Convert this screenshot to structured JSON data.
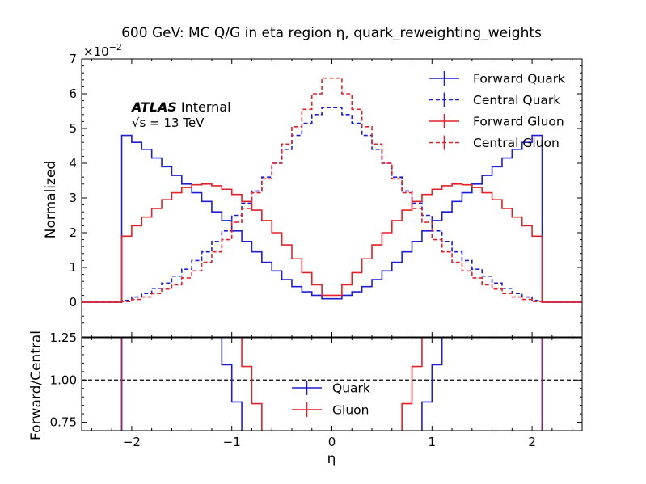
{
  "chart_data": [
    {
      "type": "line",
      "title": "600 GeV: MC Q/G in eta region η, quark_reweighting_weights",
      "xlabel": "",
      "ylabel": "Normalized",
      "y_scale_label": "×10",
      "y_scale_exponent": "−2",
      "xlim": [
        -2.5,
        2.5
      ],
      "ylim": [
        -1,
        7
      ],
      "ytick_values": [
        -1,
        0,
        1,
        2,
        3,
        4,
        5,
        6,
        7
      ],
      "ytick_labels": [
        "−1",
        "0",
        "1",
        "2",
        "3",
        "4",
        "5",
        "6",
        "7"
      ],
      "annotation": {
        "atlas": "ATLAS",
        "internal": "Internal",
        "sqrt": "√s",
        "energy": " = 13 TeV"
      },
      "legend_position": "top-right",
      "bin_edges": [
        -2.5,
        -2.1,
        -2.0,
        -1.9,
        -1.8,
        -1.7,
        -1.6,
        -1.5,
        -1.4,
        -1.3,
        -1.2,
        -1.1,
        -1.0,
        -0.9,
        -0.8,
        -0.7,
        -0.6,
        -0.5,
        -0.4,
        -0.3,
        -0.2,
        -0.1,
        0.1,
        0.2,
        0.3,
        0.4,
        0.5,
        0.6,
        0.7,
        0.8,
        0.9,
        1.0,
        1.1,
        1.2,
        1.3,
        1.4,
        1.5,
        1.6,
        1.7,
        1.8,
        1.9,
        2.0,
        2.1,
        2.5
      ],
      "series": [
        {
          "name": "Forward Quark",
          "color": "#1f1fd1",
          "style": "solid",
          "values": [
            0,
            4.8,
            4.6,
            4.4,
            4.15,
            3.9,
            3.65,
            3.4,
            3.15,
            2.9,
            2.6,
            2.35,
            2.05,
            1.75,
            1.45,
            1.15,
            0.9,
            0.65,
            0.45,
            0.3,
            0.2,
            0.1,
            0.2,
            0.3,
            0.45,
            0.65,
            0.9,
            1.15,
            1.45,
            1.75,
            2.05,
            2.35,
            2.6,
            2.9,
            3.15,
            3.4,
            3.65,
            3.9,
            4.15,
            4.4,
            4.6,
            4.8,
            0
          ]
        },
        {
          "name": "Central Quark",
          "color": "#1f1fd1",
          "style": "dashed",
          "values": [
            0,
            0.05,
            0.15,
            0.25,
            0.4,
            0.55,
            0.75,
            0.95,
            1.2,
            1.45,
            1.75,
            2.05,
            2.5,
            2.85,
            3.2,
            3.6,
            4.0,
            4.4,
            4.8,
            5.15,
            5.4,
            5.6,
            5.4,
            5.15,
            4.8,
            4.4,
            4.0,
            3.6,
            3.2,
            2.85,
            2.5,
            2.05,
            1.75,
            1.45,
            1.2,
            0.95,
            0.75,
            0.55,
            0.4,
            0.25,
            0.15,
            0.05,
            0
          ]
        },
        {
          "name": "Forward Gluon",
          "color": "#e0232b",
          "style": "solid",
          "values": [
            0,
            1.9,
            2.2,
            2.45,
            2.7,
            2.95,
            3.15,
            3.3,
            3.38,
            3.4,
            3.35,
            3.25,
            3.1,
            2.9,
            2.65,
            2.35,
            2.0,
            1.65,
            1.25,
            0.85,
            0.5,
            0.2,
            0.5,
            0.85,
            1.25,
            1.65,
            2.0,
            2.35,
            2.65,
            2.9,
            3.1,
            3.25,
            3.35,
            3.4,
            3.38,
            3.3,
            3.15,
            2.95,
            2.7,
            2.45,
            2.2,
            1.9,
            0
          ]
        },
        {
          "name": "Central Gluon",
          "color": "#e0232b",
          "style": "dashed",
          "values": [
            0,
            0.02,
            0.08,
            0.15,
            0.25,
            0.38,
            0.5,
            0.7,
            0.9,
            1.15,
            1.45,
            1.8,
            2.3,
            2.7,
            3.15,
            3.55,
            4.0,
            4.55,
            5.05,
            5.55,
            6.0,
            6.45,
            6.0,
            5.55,
            5.05,
            4.55,
            4.0,
            3.55,
            3.15,
            2.7,
            2.3,
            1.8,
            1.45,
            1.15,
            0.9,
            0.7,
            0.5,
            0.38,
            0.25,
            0.15,
            0.08,
            0.02,
            0
          ]
        }
      ]
    },
    {
      "type": "line",
      "title": "",
      "xlabel": "η",
      "ylabel": "Forward/Central",
      "xlim": [
        -2.5,
        2.5
      ],
      "ylim": [
        0.7,
        1.25
      ],
      "xtick_values": [
        -2,
        -1,
        0,
        1,
        2
      ],
      "xtick_labels": [
        "−2",
        "−1",
        "0",
        "1",
        "2"
      ],
      "ytick_values": [
        0.75,
        1.0,
        1.25
      ],
      "ytick_labels": [
        "0.75",
        "1.00",
        "1.25"
      ],
      "reference_line": 1.0,
      "legend_position": "center",
      "series": [
        {
          "name": "Quark",
          "color": "#1f1fd1",
          "points": [
            [
              -1.1,
              1.3
            ],
            [
              -1.1,
              1.09
            ],
            [
              -1.0,
              1.09
            ],
            [
              -1.0,
              0.87
            ],
            [
              -0.9,
              0.87
            ],
            [
              -0.9,
              0.65
            ],
            [
              0.9,
              0.65
            ],
            [
              0.9,
              0.87
            ],
            [
              1.0,
              0.87
            ],
            [
              1.0,
              1.09
            ],
            [
              1.1,
              1.09
            ],
            [
              1.1,
              1.3
            ]
          ],
          "verticals": [
            -2.1,
            2.1
          ]
        },
        {
          "name": "Gluon",
          "color": "#e0232b",
          "points": [
            [
              -0.9,
              1.3
            ],
            [
              -0.9,
              1.08
            ],
            [
              -0.8,
              1.08
            ],
            [
              -0.8,
              0.86
            ],
            [
              -0.7,
              0.86
            ],
            [
              -0.7,
              0.65
            ],
            [
              0.7,
              0.65
            ],
            [
              0.7,
              0.86
            ],
            [
              0.8,
              0.86
            ],
            [
              0.8,
              1.08
            ],
            [
              0.9,
              1.08
            ],
            [
              0.9,
              1.3
            ]
          ],
          "verticals": [
            -2.1,
            2.1
          ]
        }
      ]
    }
  ]
}
